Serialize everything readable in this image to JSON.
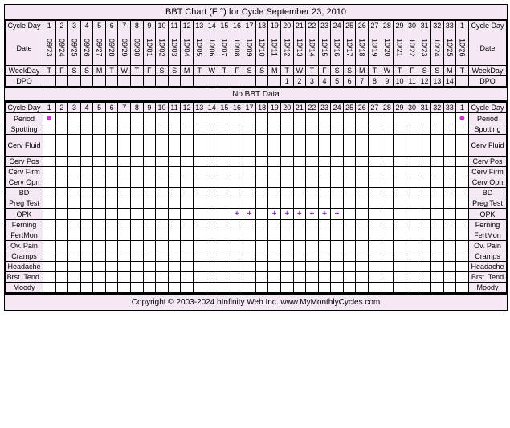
{
  "title": "BBT Chart (F °) for Cycle September 23, 2010",
  "labels": {
    "cycleDay": "Cycle Day",
    "date": "Date",
    "weekDay": "WeekDay",
    "dpo": "DPO",
    "noBBT": "No BBT Data"
  },
  "cycleDays": [
    "1",
    "2",
    "3",
    "4",
    "5",
    "6",
    "7",
    "8",
    "9",
    "10",
    "11",
    "12",
    "13",
    "14",
    "15",
    "16",
    "17",
    "18",
    "19",
    "20",
    "21",
    "22",
    "23",
    "24",
    "25",
    "26",
    "27",
    "28",
    "29",
    "30",
    "31",
    "32",
    "33",
    "1"
  ],
  "dates": [
    "09/23",
    "09/24",
    "09/25",
    "09/26",
    "09/27",
    "09/28",
    "09/29",
    "09/30",
    "10/01",
    "10/02",
    "10/03",
    "10/04",
    "10/05",
    "10/06",
    "10/07",
    "10/08",
    "10/09",
    "10/10",
    "10/11",
    "10/12",
    "10/13",
    "10/14",
    "10/15",
    "10/16",
    "10/17",
    "10/18",
    "10/19",
    "10/20",
    "10/21",
    "10/22",
    "10/23",
    "10/24",
    "10/25",
    "10/26"
  ],
  "weekdays": [
    "T",
    "F",
    "S",
    "S",
    "M",
    "T",
    "W",
    "T",
    "F",
    "S",
    "S",
    "M",
    "T",
    "W",
    "T",
    "F",
    "S",
    "S",
    "M",
    "T",
    "W",
    "T",
    "F",
    "S",
    "S",
    "M",
    "T",
    "W",
    "T",
    "F",
    "S",
    "S",
    "M",
    "T"
  ],
  "dpo": [
    "",
    "",
    "",
    "",
    "",
    "",
    "",
    "",
    "",
    "",
    "",
    "",
    "",
    "",
    "",
    "",
    "",
    "",
    "",
    "1",
    "2",
    "3",
    "4",
    "5",
    "6",
    "7",
    "8",
    "9",
    "10",
    "11",
    "12",
    "13",
    "14",
    ""
  ],
  "dataRows": [
    {
      "label": "Period",
      "tall": false,
      "marks": {
        "0": "dot",
        "33": "dot"
      }
    },
    {
      "label": "Spotting",
      "tall": false,
      "marks": {}
    },
    {
      "label": "Cerv Fluid",
      "tall": true,
      "marks": {}
    },
    {
      "label": "Cerv Pos",
      "tall": false,
      "marks": {}
    },
    {
      "label": "Cerv Firm",
      "tall": false,
      "marks": {}
    },
    {
      "label": "Cerv Opn",
      "tall": false,
      "marks": {}
    },
    {
      "label": "BD",
      "tall": false,
      "marks": {}
    },
    {
      "label": "Preg Test",
      "tall": false,
      "marks": {}
    },
    {
      "label": "OPK",
      "tall": false,
      "marks": {
        "15": "plus",
        "16": "plus",
        "18": "plus",
        "19": "plus",
        "20": "plus",
        "21": "plus",
        "22": "plus",
        "23": "plus"
      }
    },
    {
      "label": "Ferning",
      "tall": false,
      "marks": {}
    },
    {
      "label": "FertMon",
      "tall": false,
      "marks": {}
    },
    {
      "label": "Ov. Pain",
      "tall": false,
      "marks": {}
    },
    {
      "label": "Cramps",
      "tall": false,
      "marks": {}
    },
    {
      "label": "Headache",
      "tall": false,
      "marks": {}
    },
    {
      "label": "Brst. Tend.",
      "tall": false,
      "marks": {},
      "rightLabel": "Brst. Tend"
    },
    {
      "label": "Moody",
      "tall": false,
      "marks": {}
    }
  ],
  "copyright": "Copyright © 2003-2024 bInfinity Web Inc.    www.MyMonthlyCycles.com",
  "colors": {
    "headerBg": "#f5e8f5",
    "dataBg": "#ffffff",
    "dot": "#c838c8",
    "plus": "#8838c8",
    "border": "#000000"
  }
}
